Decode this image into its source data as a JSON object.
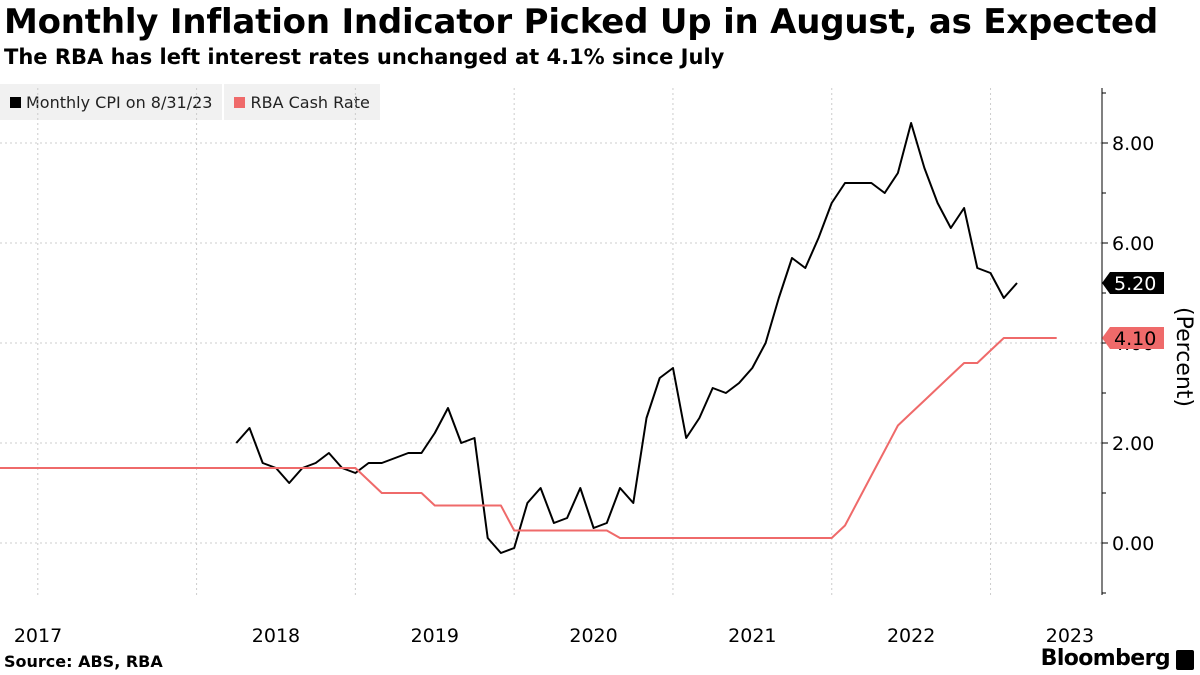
{
  "title": "Monthly Inflation Indicator Picked Up in August, as Expected",
  "subtitle": "The RBA has left interest rates unchanged at 4.1% since July",
  "source": "Source: ABS, RBA",
  "brand": "Bloomberg",
  "chart_data": {
    "type": "line",
    "ylabel": "(Percent)",
    "xlabel": "",
    "ylim": [
      -1.0,
      9.0
    ],
    "y_ticks": [
      {
        "value": 0,
        "label": "0.00"
      },
      {
        "value": 2,
        "label": "2.00"
      },
      {
        "value": 4,
        "label": "4.00"
      },
      {
        "value": 6,
        "label": "6.00"
      },
      {
        "value": 8,
        "label": "8.00"
      }
    ],
    "x_ticks": [
      "2017",
      "2018",
      "2019",
      "2020",
      "2021",
      "2022",
      "2023"
    ],
    "grid": "vertical-dashed and horizontal-dashed",
    "legend_position": "top-left",
    "series": [
      {
        "name": "Monthly CPI on 8/31/23",
        "color": "#000000",
        "end_label": "5.20",
        "points": [
          [
            "2018-04",
            2.0
          ],
          [
            "2018-05",
            2.3
          ],
          [
            "2018-06",
            1.6
          ],
          [
            "2018-07",
            1.5
          ],
          [
            "2018-08",
            1.2
          ],
          [
            "2018-09",
            1.5
          ],
          [
            "2018-10",
            1.6
          ],
          [
            "2018-11",
            1.8
          ],
          [
            "2018-12",
            1.5
          ],
          [
            "2019-01",
            1.4
          ],
          [
            "2019-02",
            1.6
          ],
          [
            "2019-03",
            1.6
          ],
          [
            "2019-04",
            1.7
          ],
          [
            "2019-05",
            1.8
          ],
          [
            "2019-06",
            1.8
          ],
          [
            "2019-07",
            2.2
          ],
          [
            "2019-08",
            2.7
          ],
          [
            "2019-09",
            2.0
          ],
          [
            "2019-10",
            2.1
          ],
          [
            "2019-11",
            0.1
          ],
          [
            "2019-12",
            -0.2
          ],
          [
            "2020-01",
            -0.1
          ],
          [
            "2020-02",
            0.8
          ],
          [
            "2020-03",
            1.1
          ],
          [
            "2020-04",
            0.4
          ],
          [
            "2020-05",
            0.5
          ],
          [
            "2020-06",
            1.1
          ],
          [
            "2020-07",
            0.3
          ],
          [
            "2020-08",
            0.4
          ],
          [
            "2020-09",
            1.1
          ],
          [
            "2020-10",
            0.8
          ],
          [
            "2020-11",
            2.5
          ],
          [
            "2020-12",
            3.3
          ],
          [
            "2021-01",
            3.5
          ],
          [
            "2021-02",
            2.1
          ],
          [
            "2021-03",
            2.5
          ],
          [
            "2021-04",
            3.1
          ],
          [
            "2021-05",
            3.0
          ],
          [
            "2021-06",
            3.2
          ],
          [
            "2021-07",
            3.5
          ],
          [
            "2021-08",
            4.0
          ],
          [
            "2021-09",
            4.9
          ],
          [
            "2021-10",
            5.7
          ],
          [
            "2021-11",
            5.5
          ],
          [
            "2021-12",
            6.1
          ],
          [
            "2022-01",
            6.8
          ],
          [
            "2022-02",
            7.2
          ],
          [
            "2022-03",
            7.2
          ],
          [
            "2022-04",
            7.2
          ],
          [
            "2022-05",
            7.0
          ],
          [
            "2022-06",
            7.4
          ],
          [
            "2022-07",
            8.4
          ],
          [
            "2022-08",
            7.5
          ],
          [
            "2022-09",
            6.8
          ],
          [
            "2022-10",
            6.3
          ],
          [
            "2022-11",
            6.7
          ],
          [
            "2022-12",
            5.5
          ],
          [
            "2023-01",
            5.4
          ],
          [
            "2023-02",
            4.9
          ],
          [
            "2023-03",
            5.2
          ]
        ]
      },
      {
        "name": "RBA Cash Rate",
        "color": "#ef6a6a",
        "end_label": "4.10",
        "points": [
          [
            "2016-09",
            1.5
          ],
          [
            "2018-12",
            1.5
          ],
          [
            "2019-01",
            1.5
          ],
          [
            "2019-02",
            1.25
          ],
          [
            "2019-03",
            1.0
          ],
          [
            "2019-04",
            1.0
          ],
          [
            "2019-05",
            1.0
          ],
          [
            "2019-06",
            1.0
          ],
          [
            "2019-07",
            0.75
          ],
          [
            "2019-08",
            0.75
          ],
          [
            "2019-09",
            0.75
          ],
          [
            "2019-10",
            0.75
          ],
          [
            "2019-11",
            0.75
          ],
          [
            "2019-12",
            0.75
          ],
          [
            "2020-01",
            0.25
          ],
          [
            "2020-02",
            0.25
          ],
          [
            "2020-03",
            0.25
          ],
          [
            "2020-04",
            0.25
          ],
          [
            "2020-05",
            0.25
          ],
          [
            "2020-06",
            0.25
          ],
          [
            "2020-07",
            0.25
          ],
          [
            "2020-08",
            0.25
          ],
          [
            "2020-09",
            0.1
          ],
          [
            "2021-12",
            0.1
          ],
          [
            "2022-01",
            0.1
          ],
          [
            "2022-02",
            0.35
          ],
          [
            "2022-03",
            0.85
          ],
          [
            "2022-04",
            1.35
          ],
          [
            "2022-05",
            1.85
          ],
          [
            "2022-06",
            2.35
          ],
          [
            "2022-07",
            2.6
          ],
          [
            "2022-08",
            2.85
          ],
          [
            "2022-09",
            3.1
          ],
          [
            "2022-10",
            3.35
          ],
          [
            "2022-11",
            3.6
          ],
          [
            "2022-12",
            3.6
          ],
          [
            "2023-01",
            3.85
          ],
          [
            "2023-02",
            4.1
          ],
          [
            "2023-03",
            4.1
          ],
          [
            "2023-04",
            4.1
          ],
          [
            "2023-05",
            4.1
          ],
          [
            "2023-06",
            4.1
          ]
        ]
      }
    ]
  }
}
